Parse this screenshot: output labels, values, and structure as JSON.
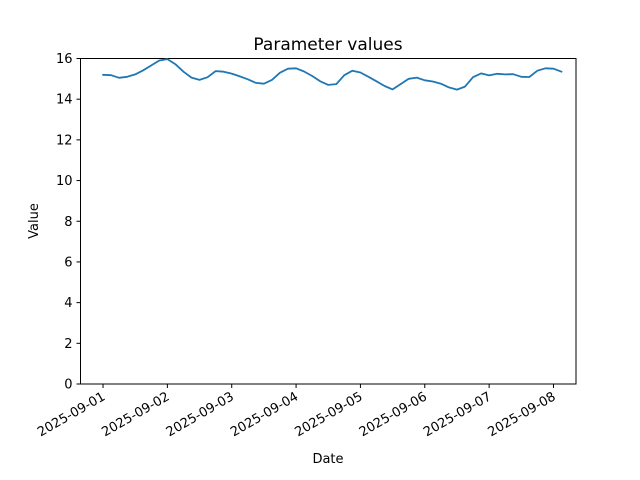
{
  "chart_data": {
    "type": "line",
    "title": "Parameter values",
    "xlabel": "Date",
    "ylabel": "Value",
    "ylim": [
      0,
      16
    ],
    "yticks": [
      0,
      2,
      4,
      6,
      8,
      10,
      12,
      14,
      16
    ],
    "xticks": [
      "2025-09-01",
      "2025-09-02",
      "2025-09-03",
      "2025-09-04",
      "2025-09-05",
      "2025-09-06",
      "2025-09-07",
      "2025-09-08"
    ],
    "x_tick_rotation_deg": 30,
    "grid": false,
    "legend": false,
    "line_color": "#1f77b4",
    "series": [
      {
        "x_unit": "hours since 2025-09-01 00:00",
        "x_hours": [
          0,
          3,
          6,
          9,
          12,
          15,
          18,
          21,
          24,
          27,
          30,
          33,
          36,
          39,
          42,
          45,
          48,
          51,
          54,
          57,
          60,
          63,
          66,
          69,
          72,
          75,
          78,
          81,
          84,
          87,
          90,
          93,
          96,
          99,
          102,
          105,
          108,
          111,
          114,
          117,
          120,
          123,
          126,
          129,
          132,
          135,
          138,
          141,
          144,
          147,
          150,
          153,
          156,
          159,
          162,
          165,
          168,
          171
        ],
        "values": [
          15.2,
          15.18,
          15.05,
          15.1,
          15.22,
          15.42,
          15.66,
          15.9,
          15.97,
          15.72,
          15.35,
          15.06,
          14.95,
          15.08,
          15.38,
          15.35,
          15.26,
          15.12,
          14.98,
          14.8,
          14.76,
          14.95,
          15.3,
          15.5,
          15.52,
          15.36,
          15.14,
          14.88,
          14.7,
          14.74,
          15.18,
          15.4,
          15.31,
          15.1,
          14.88,
          14.65,
          14.48,
          14.74,
          15.0,
          15.06,
          14.93,
          14.87,
          14.76,
          14.58,
          14.47,
          14.62,
          15.08,
          15.27,
          15.17,
          15.25,
          15.22,
          15.23,
          15.1,
          15.09,
          15.4,
          15.52,
          15.5,
          15.35
        ]
      }
    ]
  }
}
